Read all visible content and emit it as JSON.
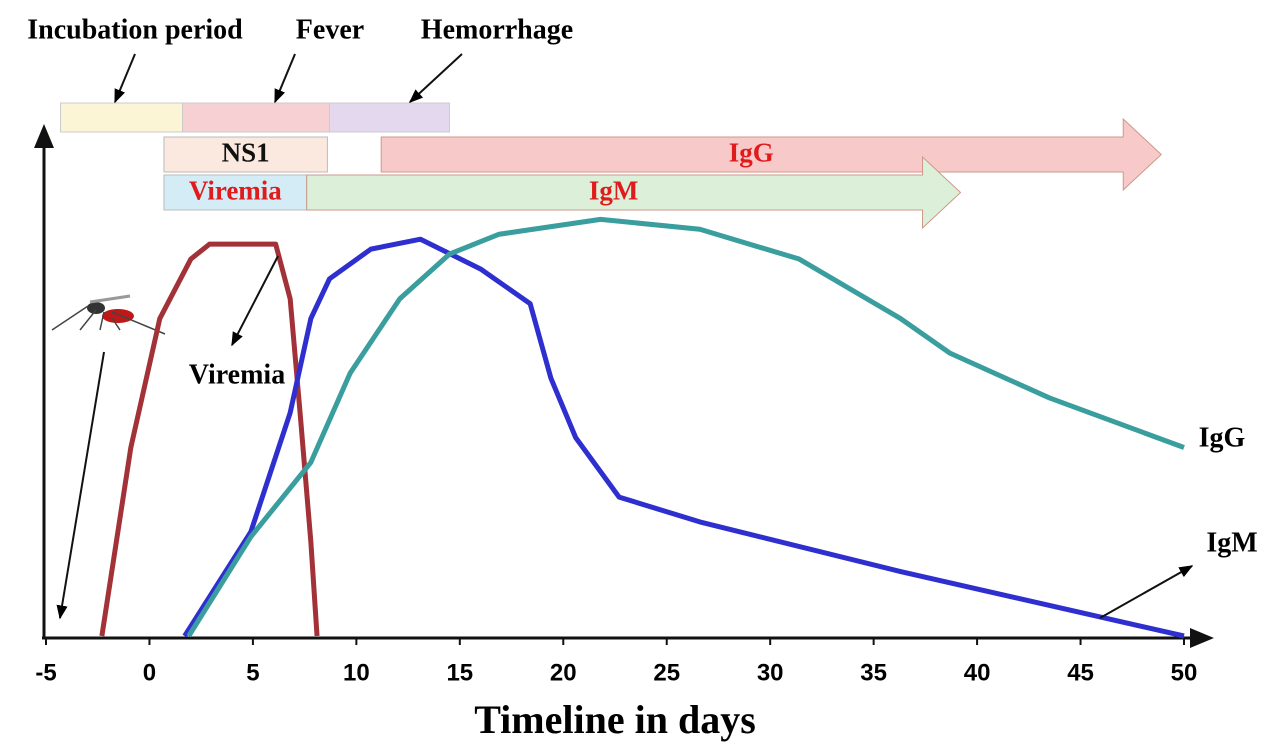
{
  "chart_data": {
    "type": "line",
    "xlabel": "Timeline in days",
    "xlim": [
      -5,
      50
    ],
    "xticks": [
      -5,
      0,
      5,
      10,
      15,
      20,
      25,
      30,
      35,
      40,
      45,
      50
    ],
    "ylim": [
      0,
      100
    ],
    "series": [
      {
        "name": "Viremia",
        "color": "#a23237",
        "x": [
          -2.3,
          -0.9,
          0.5,
          2.0,
          2.9,
          6.1,
          6.8,
          7.3,
          7.8,
          8.1
        ],
        "values": [
          0,
          38,
          64,
          76,
          79,
          79,
          68,
          44,
          19,
          0
        ]
      },
      {
        "name": "IgM",
        "color": "#2f2fd0",
        "x": [
          1.7,
          4.9,
          6.8,
          7.8,
          8.7,
          10.7,
          13.1,
          16,
          18.4,
          19.4,
          20.6,
          22.7,
          26.6,
          36.3,
          50
        ],
        "values": [
          0,
          21,
          45,
          64,
          72,
          78,
          80,
          74,
          67,
          52,
          40,
          28,
          23,
          13,
          0
        ]
      },
      {
        "name": "IgG",
        "color": "#3a9e9e",
        "x": [
          1.9,
          4.9,
          7.8,
          9.7,
          12.1,
          14.5,
          16.9,
          21.8,
          26.6,
          31.4,
          36.3,
          38.7,
          43.5,
          50
        ],
        "values": [
          0,
          20,
          35,
          53,
          68,
          77,
          81,
          84,
          82,
          76,
          64,
          57,
          48,
          38
        ]
      }
    ],
    "phases": [
      {
        "label": "Incubation period",
        "start": -4.3,
        "end": 1.6,
        "color": "#fbf5d6"
      },
      {
        "label": "Fever",
        "start": 1.6,
        "end": 8.7,
        "color": "#f6d0d2"
      },
      {
        "label": "Hemorrhage",
        "start": 8.7,
        "end": 14.5,
        "color": "#e4d8ef"
      }
    ],
    "markers": [
      {
        "label": "NS1",
        "start": 0.7,
        "end": 8.6,
        "color": "#fbe9e0",
        "row": 1,
        "arrow": false,
        "text_color": "#111111"
      },
      {
        "label": "IgG",
        "start": 11.2,
        "end": 48.9,
        "color": "#f7c9c9",
        "row": 1,
        "arrow": true,
        "text_color": "#e01b1b"
      },
      {
        "label": "Viremia",
        "start": 0.7,
        "end": 7.6,
        "color": "#d4ecf6",
        "row": 2,
        "arrow": false,
        "text_color": "#e01b1b"
      },
      {
        "label": "IgM",
        "start": 7.6,
        "end": 39.2,
        "color": "#dcefd8",
        "row": 2,
        "arrow": true,
        "text_color": "#e01b1b"
      }
    ]
  }
}
